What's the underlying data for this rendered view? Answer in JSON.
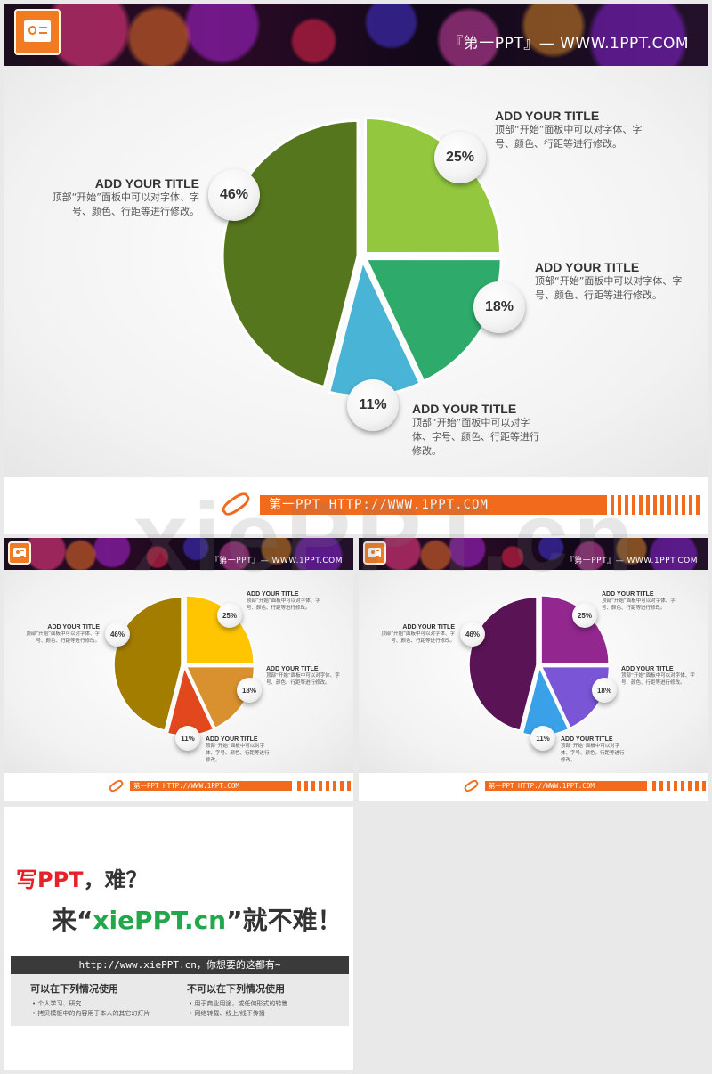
{
  "brand": {
    "header_text": "『第一PPT』— WWW.1PPT.COM",
    "footer_text": "第一PPT HTTP://WWW.1PPT.COM",
    "watermark": "xiePPT.cn",
    "accent_color": "#f26b1d"
  },
  "chart_data": [
    {
      "type": "pie",
      "slices": [
        {
          "label": "25%",
          "value": 25,
          "title": "ADD YOUR TITLE",
          "desc": "顶部“开始”面板中可以对字体、字号、颜色、行距等进行修改。",
          "color": "#93c83e"
        },
        {
          "label": "18%",
          "value": 18,
          "title": "ADD YOUR TITLE",
          "desc": "顶部“开始”面板中可以对字体、字号、颜色、行距等进行修改。",
          "color": "#2eaa6a"
        },
        {
          "label": "11%",
          "value": 11,
          "title": "ADD YOUR TITLE",
          "desc": "顶部“开始”面板中可以对字体、字号、颜色、行距等进行修改。",
          "color": "#4ab4d6"
        },
        {
          "label": "46%",
          "value": 46,
          "title": "ADD YOUR TITLE",
          "desc": "顶部“开始”面板中可以对字体、字号、颜色、行距等进行修改。",
          "color": "#56761e"
        }
      ]
    },
    {
      "type": "pie",
      "slices": [
        {
          "label": "25%",
          "value": 25,
          "title": "ADD YOUR TITLE",
          "desc": "顶部“开始”面板中可以对字体、字号、颜色、行距等进行修改。",
          "color": "#ffc600"
        },
        {
          "label": "18%",
          "value": 18,
          "title": "ADD YOUR TITLE",
          "desc": "顶部“开始”面板中可以对字体、字号、颜色、行距等进行修改。",
          "color": "#d8912e"
        },
        {
          "label": "11%",
          "value": 11,
          "title": "ADD YOUR TITLE",
          "desc": "顶部“开始”面板中可以对字体、字号、颜色、行距等进行修改。",
          "color": "#e2481d"
        },
        {
          "label": "46%",
          "value": 46,
          "title": "ADD YOUR TITLE",
          "desc": "顶部“开始”面板中可以对字体、字号、颜色、行距等进行修改。",
          "color": "#a37d00"
        }
      ]
    },
    {
      "type": "pie",
      "slices": [
        {
          "label": "25%",
          "value": 25,
          "title": "ADD YOUR TITLE",
          "desc": "顶部“开始”面板中可以对字体、字号、颜色、行距等进行修改。",
          "color": "#92278f"
        },
        {
          "label": "18%",
          "value": 18,
          "title": "ADD YOUR TITLE",
          "desc": "顶部“开始”面板中可以对字体、字号、颜色、行距等进行修改。",
          "color": "#7a55d6"
        },
        {
          "label": "11%",
          "value": 11,
          "title": "ADD YOUR TITLE",
          "desc": "顶部“开始”面板中可以对字体、字号、颜色、行距等进行修改。",
          "color": "#3aa0e8"
        },
        {
          "label": "46%",
          "value": 46,
          "title": "ADD YOUR TITLE",
          "desc": "顶部“开始”面板中可以对字体、字号、颜色、行距等进行修改。",
          "color": "#5a1355"
        }
      ]
    }
  ],
  "ad": {
    "line1_red": "写PPT",
    "line1_rest": "，难？",
    "line2_pre": "来“",
    "line2_green": "xiePPT.cn",
    "line2_post": "”就不难！",
    "url_bar": "http://www.xiePPT.cn，你想要的这都有~",
    "can_title": "可以在下列情况使用",
    "can_items": [
      "个人学习、研究",
      "拷贝模板中的内容用于本人的其它幻灯片"
    ],
    "cannot_title": "不可以在下列情况使用",
    "cannot_items": [
      "用于商业用途，或任何形式的转售",
      "网络转载、线上/线下传播"
    ]
  }
}
